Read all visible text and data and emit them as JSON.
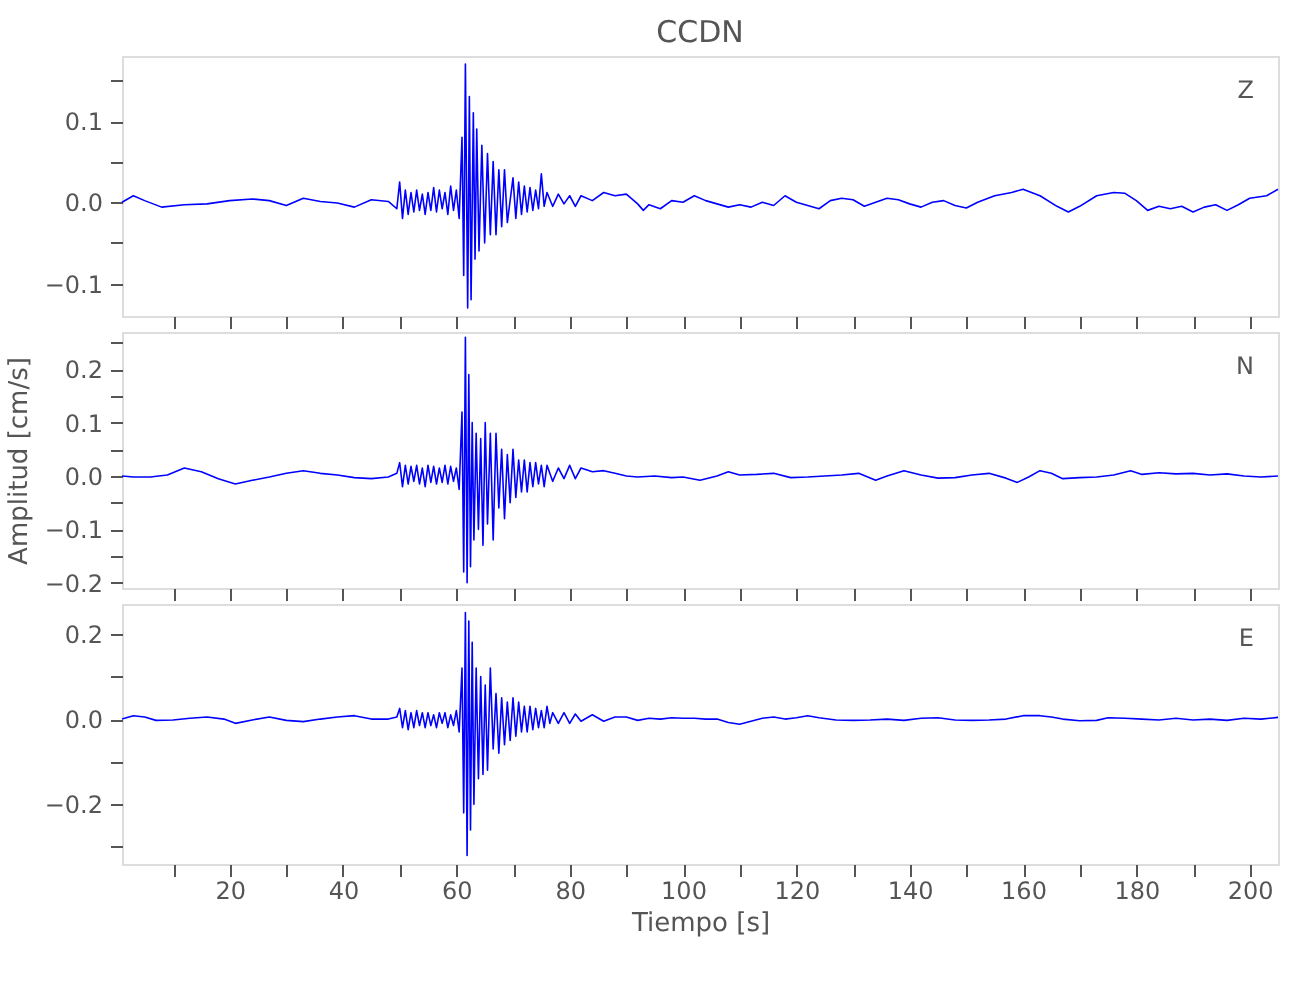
{
  "chart_data": [
    {
      "type": "line",
      "title": "CCDN",
      "annotations": [
        "Z"
      ],
      "tick_labels": "y",
      "marker": "none",
      "line_style": "solid",
      "xlim": [
        1,
        205
      ],
      "xticks": [
        10,
        20,
        30,
        40,
        50,
        60,
        70,
        80,
        90,
        100,
        110,
        120,
        130,
        140,
        150,
        160,
        170,
        180,
        190,
        200
      ],
      "ylim": [
        -0.14,
        0.18
      ],
      "yticks": [
        {
          "value": -0.1,
          "label": "−0.1"
        },
        {
          "value": -0.05,
          "label": null
        },
        {
          "value": 0,
          "label": "0.0"
        },
        {
          "value": 0.05,
          "label": null
        },
        {
          "value": 0.1,
          "label": "0.1"
        },
        {
          "value": 0.15,
          "label": null
        }
      ],
      "x": [
        1,
        3,
        5,
        8,
        12,
        16,
        20,
        24,
        27,
        30,
        33,
        36,
        39,
        42,
        45,
        48,
        49.5,
        50,
        50.5,
        51,
        51.5,
        52,
        52.5,
        53,
        53.5,
        54,
        54.5,
        55,
        55.5,
        56,
        56.5,
        57,
        57.5,
        58,
        58.5,
        59,
        59.5,
        60,
        60.5,
        61,
        61.3,
        61.6,
        62,
        62.3,
        62.6,
        63,
        63.3,
        63.6,
        64,
        64.5,
        65,
        65.5,
        66,
        66.5,
        67,
        67.5,
        68,
        68.5,
        69,
        70,
        70.5,
        71,
        71.5,
        72,
        72.5,
        73,
        73.5,
        74,
        74.5,
        75,
        75.5,
        76,
        77,
        78,
        79,
        80,
        81,
        82,
        84,
        86,
        88,
        90,
        92,
        93,
        94,
        96,
        98,
        100,
        102,
        104,
        106,
        108,
        110,
        112,
        114,
        116,
        118,
        120,
        122,
        124,
        126,
        128,
        130,
        132,
        134,
        136,
        138,
        140,
        142,
        144,
        146,
        148,
        150,
        152,
        155,
        158,
        160,
        163,
        166,
        168,
        170,
        173,
        176,
        178,
        180,
        182,
        184,
        186,
        188,
        190,
        192,
        194,
        196,
        198,
        200,
        203,
        205
      ],
      "series": [
        {
          "color": "#0000ff",
          "values": [
            0,
            0.008,
            0.002,
            -0.006,
            -0.003,
            -0.002,
            0.002,
            0.004,
            0.002,
            -0.004,
            0.005,
            0.001,
            -0.001,
            -0.006,
            0.003,
            0.001,
            -0.008,
            0.025,
            -0.02,
            0.015,
            -0.015,
            0.012,
            -0.012,
            0.015,
            -0.01,
            0.01,
            -0.015,
            0.012,
            -0.01,
            0.018,
            -0.012,
            0.015,
            -0.008,
            0.012,
            -0.015,
            0.02,
            -0.01,
            0.015,
            -0.02,
            0.08,
            -0.09,
            0.17,
            -0.13,
            0.13,
            -0.12,
            0.11,
            -0.07,
            0.09,
            -0.06,
            0.07,
            -0.05,
            0.06,
            -0.04,
            0.05,
            -0.04,
            0.04,
            -0.03,
            0.04,
            -0.025,
            0.03,
            -0.02,
            0.025,
            -0.015,
            0.02,
            -0.012,
            0.018,
            -0.01,
            0.015,
            -0.008,
            0.035,
            -0.005,
            0.012,
            -0.005,
            0.01,
            -0.002,
            0.008,
            -0.005,
            0.008,
            0.002,
            0.012,
            0.008,
            0.01,
            -0.002,
            -0.01,
            -0.003,
            -0.008,
            0.002,
            0,
            0.008,
            0.002,
            -0.002,
            -0.006,
            -0.003,
            -0.006,
            0,
            -0.004,
            0.008,
            0,
            -0.004,
            -0.008,
            0.002,
            0.005,
            0.003,
            -0.005,
            0,
            0.005,
            0.003,
            -0.002,
            -0.006,
            0,
            0.002,
            -0.004,
            -0.007,
            0,
            0.008,
            0.012,
            0.016,
            0.008,
            -0.005,
            -0.012,
            -0.005,
            0.008,
            0.012,
            0.011,
            0.002,
            -0.01,
            -0.005,
            -0.008,
            -0.005,
            -0.012,
            -0.006,
            -0.003,
            -0.01,
            -0.003,
            0.005,
            0.008,
            0.016
          ]
        }
      ]
    },
    {
      "type": "line",
      "ylabel": "Amplitud [cm/s]",
      "annotations": [
        "N"
      ],
      "tick_labels": "y",
      "marker": "none",
      "line_style": "solid",
      "xlim": [
        1,
        205
      ],
      "xticks": [
        10,
        20,
        30,
        40,
        50,
        60,
        70,
        80,
        90,
        100,
        110,
        120,
        130,
        140,
        150,
        160,
        170,
        180,
        190,
        200
      ],
      "ylim": [
        -0.21,
        0.27
      ],
      "yticks": [
        {
          "value": -0.2,
          "label": "−0.2"
        },
        {
          "value": -0.15,
          "label": null
        },
        {
          "value": -0.1,
          "label": "−0.1"
        },
        {
          "value": -0.05,
          "label": null
        },
        {
          "value": 0,
          "label": "0.0"
        },
        {
          "value": 0.05,
          "label": null
        },
        {
          "value": 0.1,
          "label": "0.1"
        },
        {
          "value": 0.15,
          "label": null
        },
        {
          "value": 0.2,
          "label": "0.2"
        },
        {
          "value": 0.25,
          "label": null
        }
      ],
      "x": [
        1,
        3,
        6,
        9,
        12,
        15,
        18,
        21,
        24,
        27,
        30,
        33,
        36,
        39,
        42,
        45,
        48,
        49.5,
        50,
        50.5,
        51,
        51.5,
        52,
        52.5,
        53,
        53.5,
        54,
        54.5,
        55,
        55.5,
        56,
        56.5,
        57,
        57.5,
        58,
        58.5,
        59,
        59.5,
        60,
        60.5,
        61,
        61.3,
        61.6,
        61.9,
        62.2,
        62.5,
        62.8,
        63.1,
        63.5,
        63.9,
        64.3,
        64.7,
        65.1,
        65.5,
        66,
        66.5,
        67,
        67.5,
        68,
        68.5,
        69,
        69.5,
        70,
        70.5,
        71,
        71.5,
        72,
        72.5,
        73,
        73.5,
        74,
        74.5,
        75,
        75.5,
        76,
        77,
        78,
        79,
        80,
        81,
        82,
        84,
        86,
        88,
        90,
        92,
        95,
        98,
        100,
        103,
        106,
        108,
        110,
        113,
        116,
        119,
        122,
        125,
        128,
        131,
        134,
        136,
        139,
        142,
        145,
        148,
        151,
        154,
        157,
        159,
        161,
        163,
        165,
        167,
        170,
        173,
        176,
        179,
        181,
        184,
        187,
        190,
        193,
        196,
        199,
        202,
        205
      ],
      "series": [
        {
          "color": "#0000ff",
          "values": [
            0,
            -0.002,
            -0.002,
            0.002,
            0.015,
            0.008,
            -0.005,
            -0.015,
            -0.008,
            -0.002,
            0.005,
            0.01,
            0.005,
            0.002,
            -0.003,
            -0.005,
            -0.002,
            0.005,
            0.025,
            -0.02,
            0.02,
            -0.015,
            0.018,
            -0.01,
            0.02,
            -0.015,
            0.015,
            -0.02,
            0.02,
            -0.012,
            0.018,
            -0.015,
            0.015,
            -0.012,
            0.02,
            -0.015,
            0.018,
            -0.01,
            0.015,
            -0.025,
            0.12,
            -0.18,
            0.26,
            -0.2,
            0.19,
            -0.17,
            0.1,
            -0.12,
            0.08,
            -0.1,
            0.07,
            -0.13,
            0.1,
            -0.09,
            0.08,
            -0.12,
            0.08,
            -0.06,
            0.05,
            -0.08,
            0.04,
            -0.05,
            0.05,
            -0.04,
            0.03,
            -0.03,
            0.03,
            -0.03,
            0.025,
            -0.02,
            0.025,
            -0.015,
            0.02,
            -0.02,
            0.02,
            -0.01,
            0.015,
            -0.005,
            0.02,
            -0.005,
            0.015,
            0.008,
            0.01,
            0.005,
            0,
            -0.002,
            0,
            -0.003,
            -0.002,
            -0.008,
            0,
            0.008,
            0.002,
            0.003,
            0.005,
            -0.003,
            -0.002,
            0,
            0.002,
            0.005,
            -0.008,
            0,
            0.01,
            0.002,
            -0.004,
            -0.003,
            0.002,
            0.005,
            -0.004,
            -0.012,
            -0.002,
            0.01,
            0.005,
            -0.005,
            -0.003,
            -0.002,
            0.002,
            0.01,
            0.003,
            0.006,
            0.004,
            0.005,
            0.002,
            0.004,
            0,
            -0.002,
            0
          ]
        }
      ]
    },
    {
      "type": "line",
      "xlabel": "Tiempo [s]",
      "annotations": [
        "E"
      ],
      "marker": "none",
      "line_style": "solid",
      "xlim": [
        1,
        205
      ],
      "xticks": [
        {
          "value": 10,
          "label": null
        },
        {
          "value": 20,
          "label": "20"
        },
        {
          "value": 30,
          "label": null
        },
        {
          "value": 40,
          "label": "40"
        },
        {
          "value": 50,
          "label": null
        },
        {
          "value": 60,
          "label": "60"
        },
        {
          "value": 70,
          "label": null
        },
        {
          "value": 80,
          "label": "80"
        },
        {
          "value": 90,
          "label": null
        },
        {
          "value": 100,
          "label": "100"
        },
        {
          "value": 110,
          "label": null
        },
        {
          "value": 120,
          "label": "120"
        },
        {
          "value": 130,
          "label": null
        },
        {
          "value": 140,
          "label": "140"
        },
        {
          "value": 150,
          "label": null
        },
        {
          "value": 160,
          "label": "160"
        },
        {
          "value": 170,
          "label": null
        },
        {
          "value": 180,
          "label": "180"
        },
        {
          "value": 190,
          "label": null
        },
        {
          "value": 200,
          "label": "200"
        }
      ],
      "ylim": [
        -0.34,
        0.27
      ],
      "yticks": [
        {
          "value": -0.3,
          "label": null
        },
        {
          "value": -0.2,
          "label": "−0.2"
        },
        {
          "value": -0.1,
          "label": null
        },
        {
          "value": 0,
          "label": "0.0"
        },
        {
          "value": 0.1,
          "label": null
        },
        {
          "value": 0.2,
          "label": "0.2"
        }
      ],
      "x": [
        1,
        3,
        5,
        7,
        10,
        13,
        16,
        19,
        21,
        24,
        27,
        30,
        33,
        36,
        39,
        42,
        45,
        48,
        49.5,
        50,
        50.5,
        51,
        51.5,
        52,
        52.5,
        53,
        53.5,
        54,
        54.5,
        55,
        55.5,
        56,
        56.5,
        57,
        57.5,
        58,
        58.5,
        59,
        59.5,
        60,
        60.5,
        61,
        61.3,
        61.6,
        61.9,
        62.2,
        62.5,
        62.8,
        63.1,
        63.5,
        63.9,
        64.3,
        64.7,
        65.1,
        65.5,
        66,
        66.5,
        67,
        67.5,
        68,
        68.5,
        69,
        69.5,
        70,
        70.5,
        71,
        71.5,
        72,
        72.5,
        73,
        73.5,
        74,
        74.5,
        75,
        75.5,
        76,
        76.5,
        77,
        78,
        79,
        80,
        81,
        82,
        84,
        86,
        88,
        90,
        92,
        94,
        96,
        98,
        100,
        102,
        104,
        106,
        108,
        110,
        112,
        114,
        116,
        118,
        120,
        122,
        124,
        127,
        130,
        133,
        136,
        139,
        142,
        145,
        148,
        151,
        154,
        157,
        160,
        163,
        165,
        167,
        170,
        173,
        175,
        178,
        181,
        184,
        187,
        190,
        193,
        196,
        199,
        202,
        205
      ],
      "series": [
        {
          "color": "#0000ff",
          "values": [
            0,
            0.008,
            0.005,
            -0.003,
            -0.002,
            0.002,
            0.005,
            0,
            -0.01,
            -0.002,
            0.005,
            -0.003,
            -0.006,
            0,
            0.005,
            0.008,
            0,
            0,
            0.005,
            0.025,
            -0.02,
            0.02,
            -0.025,
            0.015,
            -0.02,
            0.02,
            -0.015,
            0.015,
            -0.02,
            0.015,
            -0.015,
            0.01,
            -0.02,
            0.015,
            -0.01,
            0.015,
            -0.02,
            0.01,
            -0.015,
            0.02,
            -0.03,
            0.12,
            -0.22,
            0.25,
            -0.32,
            0.23,
            -0.26,
            0.18,
            -0.2,
            0.12,
            -0.14,
            0.1,
            -0.13,
            0.08,
            -0.12,
            0.12,
            -0.07,
            0.06,
            -0.08,
            0.05,
            -0.06,
            0.04,
            -0.05,
            0.05,
            -0.04,
            0.04,
            -0.03,
            0.03,
            -0.03,
            0.03,
            -0.025,
            0.025,
            -0.02,
            0.02,
            -0.02,
            0.03,
            -0.01,
            0.015,
            -0.01,
            0.015,
            -0.01,
            0.012,
            -0.005,
            0.01,
            -0.005,
            0.005,
            0.005,
            -0.003,
            0.002,
            0,
            0.003,
            0.002,
            0.002,
            0,
            0,
            -0.008,
            -0.012,
            -0.005,
            0.002,
            0.005,
            0,
            0.003,
            0.008,
            0.003,
            -0.002,
            -0.003,
            -0.002,
            0,
            -0.003,
            0.002,
            0.003,
            -0.002,
            -0.003,
            -0.002,
            0,
            0.008,
            0.008,
            0.005,
            0,
            -0.004,
            -0.003,
            0.003,
            0.002,
            0,
            -0.002,
            0.002,
            -0.002,
            0,
            -0.003,
            0.002,
            0,
            0.004
          ]
        }
      ]
    }
  ]
}
